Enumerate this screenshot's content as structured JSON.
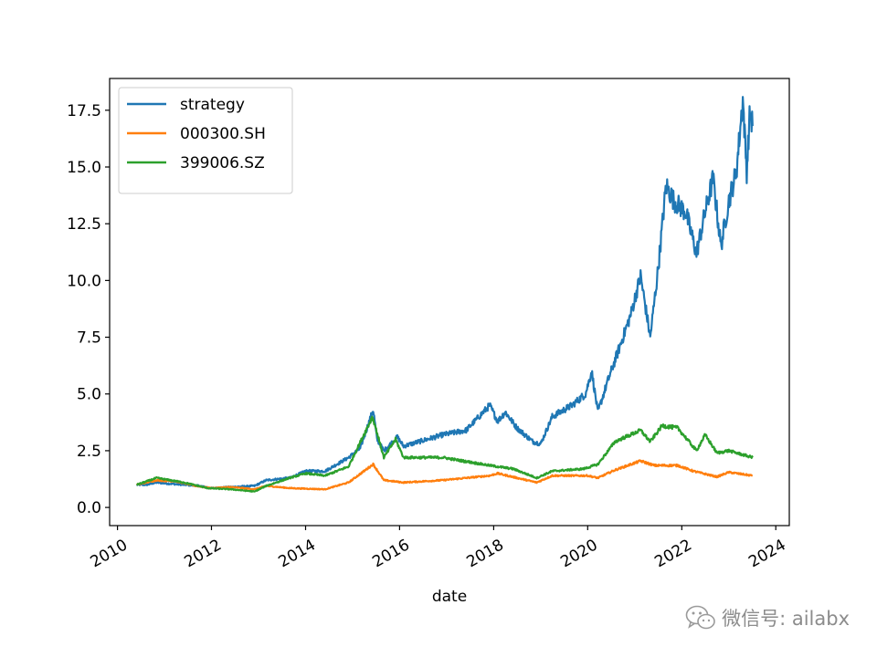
{
  "chart_data": {
    "type": "line",
    "xlabel": "date",
    "ylabel": "",
    "title": "",
    "x_ticks": [
      "2010",
      "2012",
      "2014",
      "2016",
      "2018",
      "2020",
      "2022",
      "2024"
    ],
    "y_ticks": [
      "0.0",
      "2.5",
      "5.0",
      "7.5",
      "10.0",
      "12.5",
      "15.0",
      "17.5"
    ],
    "xlim": [
      "2009-11-01",
      "2024-04-15"
    ],
    "ylim": [
      -0.8,
      18.9
    ],
    "grid": false,
    "legend_position": "top-left",
    "series": [
      {
        "name": "strategy",
        "color": "#1f77b4",
        "points": [
          [
            "2010-05-31",
            1.0
          ],
          [
            "2010-08-15",
            1.0
          ],
          [
            "2010-11-01",
            1.1
          ],
          [
            "2011-02-01",
            1.05
          ],
          [
            "2011-06-01",
            1.0
          ],
          [
            "2011-10-01",
            0.95
          ],
          [
            "2012-01-01",
            0.85
          ],
          [
            "2012-06-01",
            0.9
          ],
          [
            "2012-12-01",
            0.95
          ],
          [
            "2013-03-01",
            1.2
          ],
          [
            "2013-09-01",
            1.3
          ],
          [
            "2014-01-01",
            1.6
          ],
          [
            "2014-06-01",
            1.6
          ],
          [
            "2014-12-01",
            2.2
          ],
          [
            "2015-03-01",
            2.6
          ],
          [
            "2015-06-10",
            4.3
          ],
          [
            "2015-07-10",
            3.0
          ],
          [
            "2015-09-01",
            2.5
          ],
          [
            "2015-12-15",
            3.1
          ],
          [
            "2016-02-01",
            2.7
          ],
          [
            "2016-06-01",
            2.9
          ],
          [
            "2016-12-01",
            3.2
          ],
          [
            "2017-06-01",
            3.4
          ],
          [
            "2017-12-01",
            4.5
          ],
          [
            "2018-02-01",
            3.8
          ],
          [
            "2018-04-01",
            4.2
          ],
          [
            "2018-07-01",
            3.5
          ],
          [
            "2018-11-01",
            2.9
          ],
          [
            "2019-01-01",
            2.8
          ],
          [
            "2019-04-01",
            4.0
          ],
          [
            "2019-09-01",
            4.5
          ],
          [
            "2019-12-15",
            5.0
          ],
          [
            "2020-02-01",
            6.0
          ],
          [
            "2020-03-20",
            4.2
          ],
          [
            "2020-06-01",
            5.5
          ],
          [
            "2020-09-01",
            7.0
          ],
          [
            "2020-12-01",
            8.5
          ],
          [
            "2021-02-15",
            10.2
          ],
          [
            "2021-05-01",
            7.5
          ],
          [
            "2021-07-01",
            10.5
          ],
          [
            "2021-09-01",
            14.2
          ],
          [
            "2021-11-01",
            13.5
          ],
          [
            "2022-02-01",
            13.0
          ],
          [
            "2022-04-25",
            11.2
          ],
          [
            "2022-07-01",
            13.0
          ],
          [
            "2022-09-01",
            14.5
          ],
          [
            "2022-11-01",
            11.5
          ],
          [
            "2023-01-01",
            13.5
          ],
          [
            "2023-03-01",
            14.8
          ],
          [
            "2023-04-20",
            18.0
          ],
          [
            "2023-05-20",
            14.8
          ],
          [
            "2023-06-15",
            17.5
          ],
          [
            "2023-07-05",
            16.8
          ]
        ]
      },
      {
        "name": "000300.SH",
        "color": "#ff7f0e",
        "points": [
          [
            "2010-05-31",
            1.0
          ],
          [
            "2010-11-01",
            1.2
          ],
          [
            "2011-04-01",
            1.15
          ],
          [
            "2011-09-01",
            0.95
          ],
          [
            "2012-01-01",
            0.85
          ],
          [
            "2012-06-01",
            0.9
          ],
          [
            "2012-12-01",
            0.8
          ],
          [
            "2013-03-01",
            0.95
          ],
          [
            "2013-09-01",
            0.85
          ],
          [
            "2014-06-01",
            0.8
          ],
          [
            "2014-12-01",
            1.1
          ],
          [
            "2015-06-10",
            1.9
          ],
          [
            "2015-09-01",
            1.2
          ],
          [
            "2016-02-01",
            1.1
          ],
          [
            "2016-12-01",
            1.2
          ],
          [
            "2017-12-01",
            1.4
          ],
          [
            "2018-02-01",
            1.5
          ],
          [
            "2018-12-01",
            1.1
          ],
          [
            "2019-04-01",
            1.4
          ],
          [
            "2020-01-01",
            1.4
          ],
          [
            "2020-03-20",
            1.3
          ],
          [
            "2020-08-01",
            1.65
          ],
          [
            "2021-02-15",
            2.05
          ],
          [
            "2021-06-01",
            1.85
          ],
          [
            "2021-12-01",
            1.85
          ],
          [
            "2022-04-01",
            1.6
          ],
          [
            "2022-10-01",
            1.35
          ],
          [
            "2023-01-01",
            1.55
          ],
          [
            "2023-07-05",
            1.4
          ]
        ]
      },
      {
        "name": "399006.SZ",
        "color": "#2ca02c",
        "points": [
          [
            "2010-05-31",
            1.0
          ],
          [
            "2010-11-01",
            1.3
          ],
          [
            "2011-06-01",
            1.1
          ],
          [
            "2011-12-01",
            0.85
          ],
          [
            "2012-06-01",
            0.8
          ],
          [
            "2012-12-01",
            0.7
          ],
          [
            "2013-03-01",
            0.95
          ],
          [
            "2013-09-01",
            1.3
          ],
          [
            "2014-01-01",
            1.5
          ],
          [
            "2014-06-01",
            1.4
          ],
          [
            "2014-12-01",
            1.8
          ],
          [
            "2015-06-05",
            4.0
          ],
          [
            "2015-09-01",
            2.2
          ],
          [
            "2015-12-01",
            3.0
          ],
          [
            "2016-02-01",
            2.2
          ],
          [
            "2016-12-01",
            2.2
          ],
          [
            "2017-12-01",
            1.85
          ],
          [
            "2018-06-01",
            1.7
          ],
          [
            "2018-12-01",
            1.3
          ],
          [
            "2019-04-01",
            1.6
          ],
          [
            "2019-12-01",
            1.7
          ],
          [
            "2020-03-20",
            1.9
          ],
          [
            "2020-08-01",
            2.9
          ],
          [
            "2021-02-15",
            3.4
          ],
          [
            "2021-05-01",
            2.9
          ],
          [
            "2021-08-01",
            3.6
          ],
          [
            "2021-12-01",
            3.5
          ],
          [
            "2022-04-25",
            2.5
          ],
          [
            "2022-07-01",
            3.2
          ],
          [
            "2022-10-01",
            2.4
          ],
          [
            "2023-01-01",
            2.5
          ],
          [
            "2023-07-05",
            2.2
          ]
        ]
      }
    ]
  },
  "watermark": {
    "text": "微信号: ailabx",
    "icon": "wechat-icon"
  }
}
